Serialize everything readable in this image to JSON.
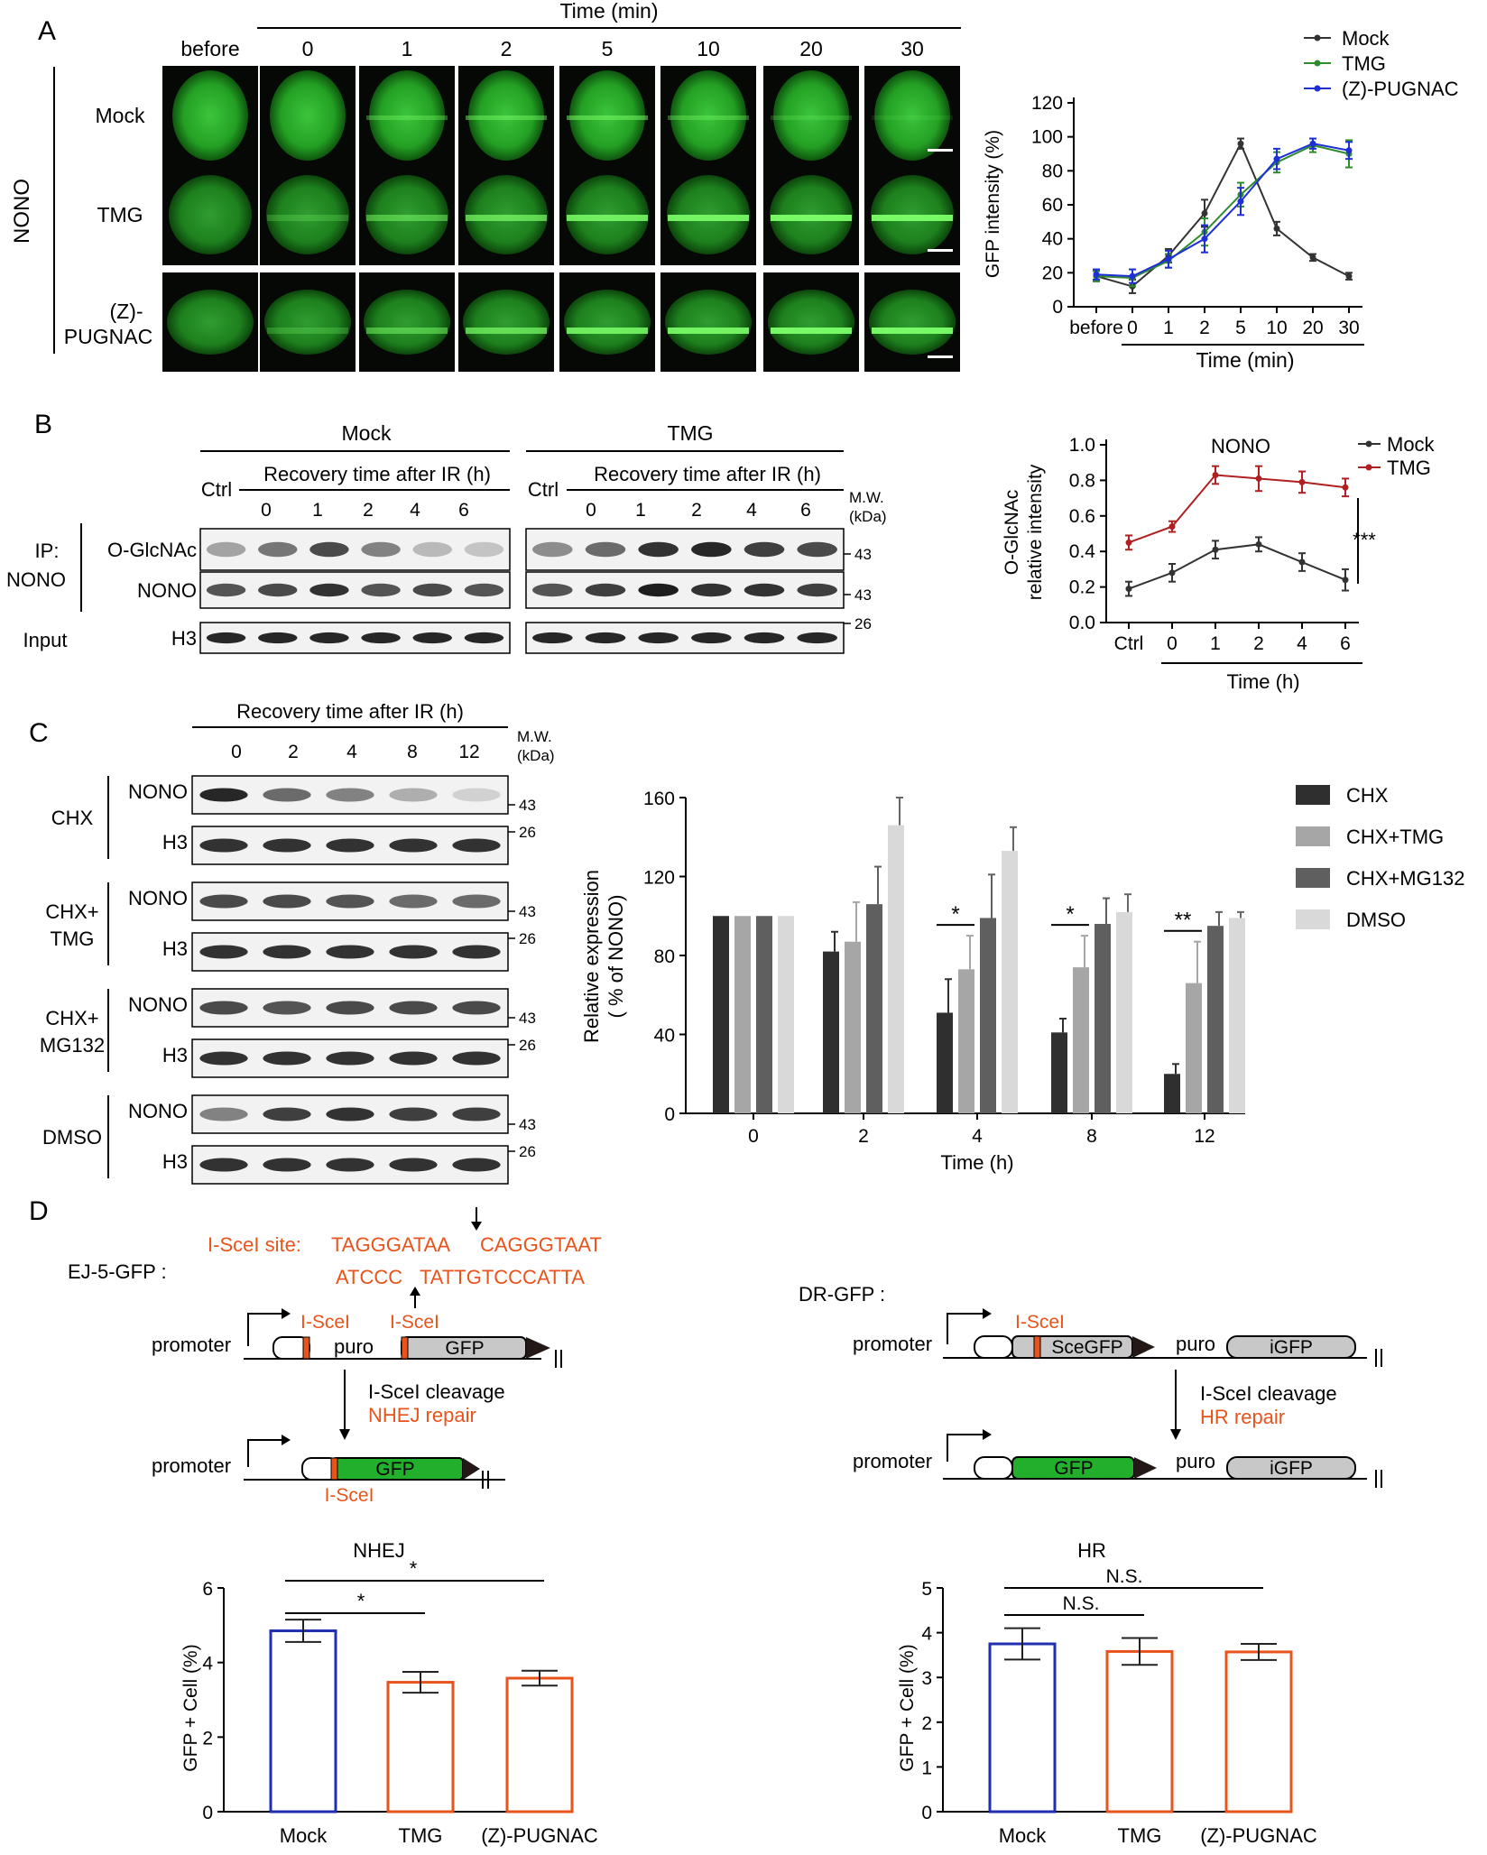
{
  "panel_letters": [
    "A",
    "B",
    "C",
    "D"
  ],
  "panel_a": {
    "time_header": "Time (min)",
    "columns": [
      "before",
      "0",
      "1",
      "2",
      "5",
      "10",
      "20",
      "30"
    ],
    "rows": [
      "Mock",
      "TMG",
      "(Z)-PUGNAC"
    ],
    "rows_line1": [
      "Mock",
      "TMG",
      "(Z)-"
    ],
    "rows_line2": [
      "",
      "",
      "PUGNAC"
    ],
    "protein_label": "NONO"
  },
  "panel_b": {
    "group_mock": "Mock",
    "group_tmg": "TMG",
    "recovery_label": "Recovery time after IR (h)",
    "ctrl": "Ctrl",
    "timepoints": [
      "0",
      "1",
      "2",
      "4",
      "6"
    ],
    "mw_line1": "M.W.",
    "mw_line2": "(kDa)",
    "ip_line1": "IP:",
    "ip_line2": "NONO",
    "input_label": "Input",
    "row_labels": [
      "O-GlcNAc",
      "NONO",
      "H3"
    ],
    "mw_markers": [
      "43",
      "43",
      "26"
    ]
  },
  "panel_c": {
    "recovery_label": "Recovery time after IR (h)",
    "timepoints": [
      "0",
      "2",
      "4",
      "8",
      "12"
    ],
    "mw_line1": "M.W.",
    "mw_line2": "(kDa)",
    "groups": [
      {
        "line1": "CHX",
        "line2": "",
        "rows": [
          "NONO",
          "H3"
        ],
        "mw": [
          "43",
          "26"
        ]
      },
      {
        "line1": "CHX+",
        "line2": "TMG",
        "rows": [
          "NONO",
          "H3"
        ],
        "mw": [
          "43",
          "26"
        ]
      },
      {
        "line1": "CHX+",
        "line2": "MG132",
        "rows": [
          "NONO",
          "H3"
        ],
        "mw": [
          "43",
          "26"
        ]
      },
      {
        "line1": "DMSO",
        "line2": "",
        "rows": [
          "NONO",
          "H3"
        ],
        "mw": [
          "43",
          "26"
        ]
      }
    ]
  },
  "panel_d": {
    "ej5_title": "EJ-5-GFP :",
    "site_label": "I-SceI site:",
    "seq_top_a": "TAGGGATAA",
    "seq_top_b": "CAGGGTAAT",
    "seq_bottom_a": "ATCCC",
    "seq_bottom_b": "TATTGTCCCATTA",
    "isce1": "I-SceI",
    "promoter": "promoter",
    "puro": "puro",
    "gfp": "GFP",
    "cleavage": "I-SceI cleavage",
    "nhej_repair": "NHEJ repair",
    "dr_title": "DR-GFP :",
    "scegfp": "SceGFP",
    "igfp": "iGFP",
    "hr_repair": "HR repair"
  },
  "colors": {
    "mock": "#333333",
    "tmg_a": "#2e8b2e",
    "pugnac": "#1f2fd6",
    "tmg_b": "#b02020",
    "orange": "#e8541c",
    "blue_bar": "#1f2fb0",
    "chx": "#2f2f2f",
    "chx_tmg": "#a6a6a6",
    "chx_mg132": "#5f5f5f",
    "dmso": "#d9d9d9",
    "gfp_green": "#22b02c",
    "grey_box": "#c8c8c8"
  },
  "chart_data": [
    {
      "id": "A-line",
      "type": "line",
      "categories": [
        "before",
        "0",
        "1",
        "2",
        "5",
        "10",
        "20",
        "30"
      ],
      "ylabel": "GFP intensity (%)",
      "xlabel": "Time (min)",
      "ylim": [
        0,
        120
      ],
      "yticks": [
        "0",
        "20",
        "40",
        "60",
        "80",
        "100",
        "120"
      ],
      "legend": "top-right",
      "series": [
        {
          "name": "Mock",
          "values": [
            18,
            12,
            30,
            55,
            96,
            46,
            29,
            18
          ],
          "err": [
            3,
            4,
            4,
            8,
            3,
            4,
            2,
            2
          ]
        },
        {
          "name": "TMG",
          "values": [
            18,
            17,
            27,
            44,
            66,
            85,
            95,
            90
          ],
          "err": [
            3,
            5,
            4,
            8,
            7,
            6,
            4,
            8
          ]
        },
        {
          "name": "(Z)-PUGNAC",
          "values": [
            19,
            18,
            28,
            40,
            62,
            87,
            96,
            92
          ],
          "err": [
            3,
            4,
            5,
            8,
            8,
            6,
            3,
            5
          ]
        }
      ]
    },
    {
      "id": "B-line",
      "type": "line",
      "title": "NONO",
      "categories": [
        "Ctrl",
        "0",
        "1",
        "2",
        "4",
        "6"
      ],
      "ylabel_1": "O-GlcNAc",
      "ylabel_2": "relative intensity",
      "xlabel": "Time (h)",
      "ylim": [
        0,
        1.0
      ],
      "yticks": [
        "0.0",
        "0.2",
        "0.4",
        "0.6",
        "0.8",
        "1.0"
      ],
      "significance": "***",
      "legend": "top-right",
      "series": [
        {
          "name": "Mock",
          "values": [
            0.19,
            0.28,
            0.41,
            0.44,
            0.34,
            0.24
          ],
          "err": [
            0.04,
            0.05,
            0.05,
            0.04,
            0.05,
            0.06
          ]
        },
        {
          "name": "TMG",
          "values": [
            0.45,
            0.54,
            0.83,
            0.81,
            0.79,
            0.76
          ],
          "err": [
            0.04,
            0.03,
            0.05,
            0.07,
            0.06,
            0.05
          ]
        }
      ]
    },
    {
      "id": "C-bar",
      "type": "bar",
      "categories": [
        "0",
        "2",
        "4",
        "8",
        "12"
      ],
      "ylabel_1": "Relative expression",
      "ylabel_2": "( % of NONO)",
      "xlabel": "Time (h)",
      "ylim": [
        0,
        160
      ],
      "yticks": [
        "0",
        "40",
        "80",
        "120",
        "160"
      ],
      "legend": "right",
      "significance": [
        "",
        "",
        "*",
        "*",
        "**"
      ],
      "series": [
        {
          "name": "CHX",
          "values": [
            100,
            82,
            51,
            41,
            20
          ],
          "err": [
            0,
            10,
            17,
            7,
            5
          ]
        },
        {
          "name": "CHX+TMG",
          "values": [
            100,
            87,
            73,
            74,
            66
          ],
          "err": [
            0,
            20,
            17,
            16,
            21
          ]
        },
        {
          "name": "CHX+MG132",
          "values": [
            100,
            106,
            99,
            96,
            95
          ],
          "err": [
            0,
            19,
            22,
            13,
            7
          ]
        },
        {
          "name": "DMSO",
          "values": [
            100,
            146,
            133,
            102,
            99
          ],
          "err": [
            0,
            14,
            12,
            9,
            3
          ]
        }
      ]
    },
    {
      "id": "D-NHEJ",
      "type": "bar",
      "title": "NHEJ",
      "categories": [
        "Mock",
        "TMG",
        "(Z)-PUGNAC"
      ],
      "ylabel": "GFP + Cell (%)",
      "ylim": [
        0,
        6
      ],
      "yticks": [
        "0",
        "2",
        "4",
        "6"
      ],
      "values": [
        4.85,
        3.47,
        3.58
      ],
      "err": [
        0.3,
        0.28,
        0.2
      ],
      "significance": [
        "*",
        "*"
      ]
    },
    {
      "id": "D-HR",
      "type": "bar",
      "title": "HR",
      "categories": [
        "Mock",
        "TMG",
        "(Z)-PUGNAC"
      ],
      "ylabel": "GFP + Cell (%)",
      "ylim": [
        0,
        5
      ],
      "yticks": [
        "0",
        "1",
        "2",
        "3",
        "4",
        "5"
      ],
      "values": [
        3.75,
        3.58,
        3.57
      ],
      "err": [
        0.35,
        0.3,
        0.18
      ],
      "significance": [
        "N.S.",
        "N.S."
      ]
    }
  ]
}
